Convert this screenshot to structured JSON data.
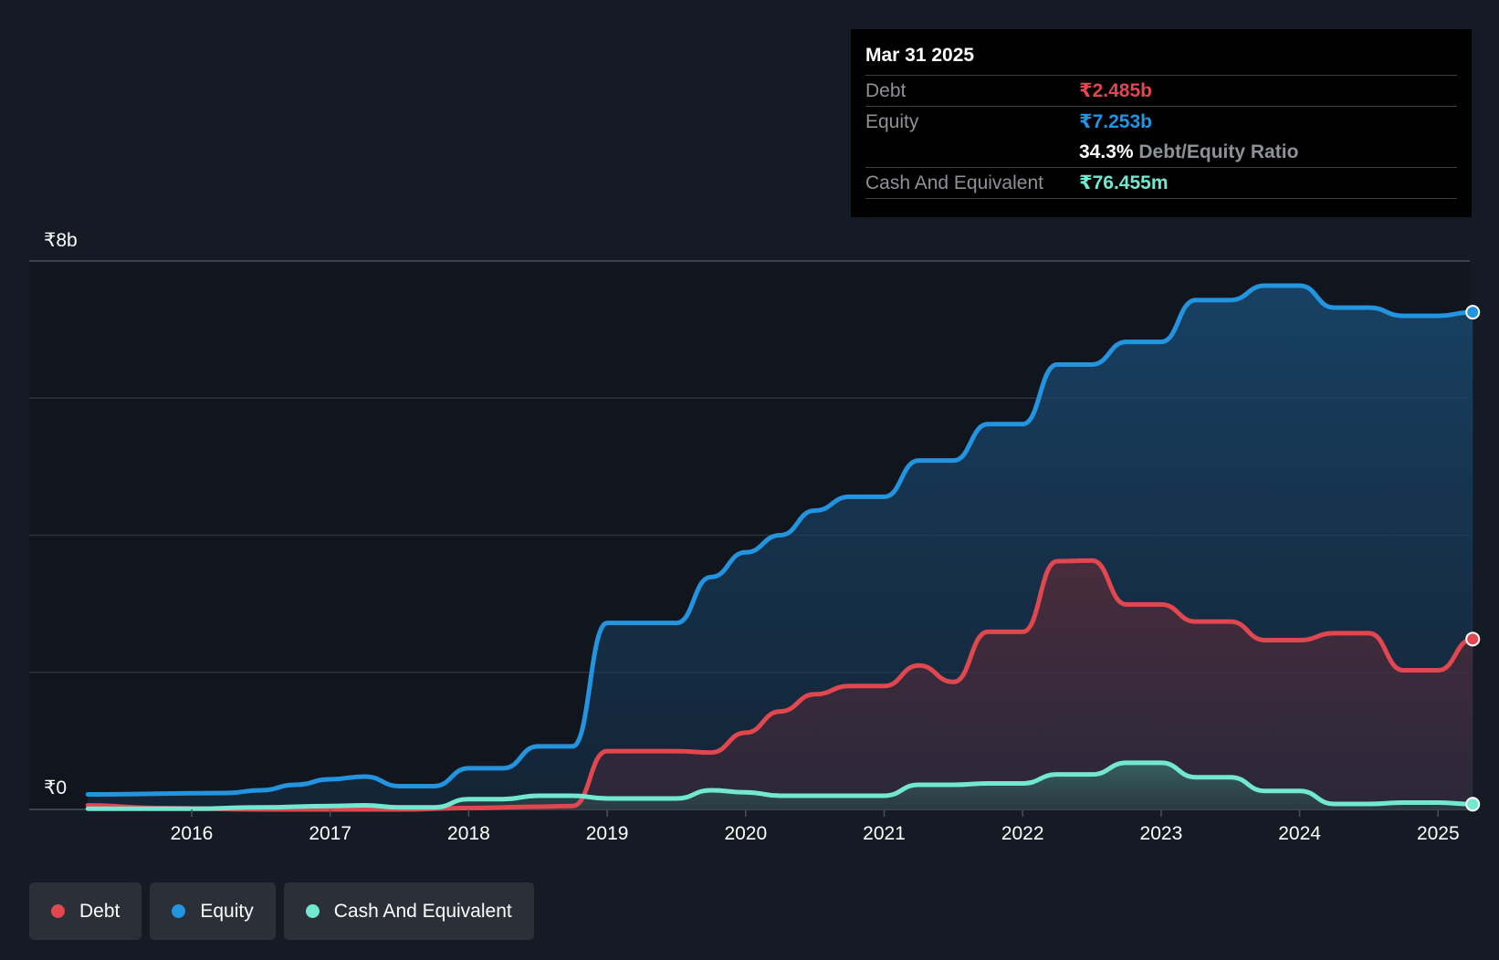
{
  "chart_data": {
    "type": "area",
    "title": "",
    "y_axis": {
      "top_label": "₹8b",
      "bottom_label": "₹0",
      "ylim": [
        0,
        8
      ],
      "unit": "₹b"
    },
    "x_axis": {
      "ticks": [
        "2016",
        "2017",
        "2018",
        "2019",
        "2020",
        "2021",
        "2022",
        "2023",
        "2024",
        "2025"
      ],
      "xlim": [
        2015.25,
        2025.25
      ]
    },
    "series": [
      {
        "name": "Equity",
        "color": "#2394df",
        "points": [
          [
            2015.25,
            0.22
          ],
          [
            2016.25,
            0.24
          ],
          [
            2016.5,
            0.28
          ],
          [
            2016.75,
            0.36
          ],
          [
            2017.0,
            0.44
          ],
          [
            2017.25,
            0.48
          ],
          [
            2017.5,
            0.34
          ],
          [
            2017.75,
            0.34
          ],
          [
            2018.0,
            0.6
          ],
          [
            2018.25,
            0.6
          ],
          [
            2018.5,
            0.92
          ],
          [
            2018.75,
            0.92
          ],
          [
            2019.0,
            2.72
          ],
          [
            2019.5,
            2.72
          ],
          [
            2019.75,
            3.39
          ],
          [
            2020.0,
            3.75
          ],
          [
            2020.25,
            4.0
          ],
          [
            2020.5,
            4.36
          ],
          [
            2020.75,
            4.56
          ],
          [
            2021.0,
            4.56
          ],
          [
            2021.25,
            5.09
          ],
          [
            2021.5,
            5.09
          ],
          [
            2021.75,
            5.62
          ],
          [
            2022.0,
            5.62
          ],
          [
            2022.25,
            6.49
          ],
          [
            2022.5,
            6.49
          ],
          [
            2022.75,
            6.82
          ],
          [
            2023.0,
            6.82
          ],
          [
            2023.25,
            7.43
          ],
          [
            2023.5,
            7.43
          ],
          [
            2023.75,
            7.64
          ],
          [
            2024.0,
            7.64
          ],
          [
            2024.25,
            7.32
          ],
          [
            2024.5,
            7.32
          ],
          [
            2024.75,
            7.2
          ],
          [
            2025.0,
            7.2
          ],
          [
            2025.25,
            7.253
          ]
        ]
      },
      {
        "name": "Debt",
        "color": "#e0474e",
        "points": [
          [
            2015.25,
            0.06
          ],
          [
            2015.75,
            0.02
          ],
          [
            2016.5,
            0.0
          ],
          [
            2017.5,
            0.0
          ],
          [
            2018.0,
            0.02
          ],
          [
            2018.5,
            0.04
          ],
          [
            2018.75,
            0.05
          ],
          [
            2019.0,
            0.85
          ],
          [
            2019.5,
            0.85
          ],
          [
            2019.75,
            0.83
          ],
          [
            2020.0,
            1.12
          ],
          [
            2020.25,
            1.43
          ],
          [
            2020.5,
            1.68
          ],
          [
            2020.75,
            1.8
          ],
          [
            2021.0,
            1.8
          ],
          [
            2021.25,
            2.1
          ],
          [
            2021.5,
            1.86
          ],
          [
            2021.75,
            2.59
          ],
          [
            2022.0,
            2.59
          ],
          [
            2022.25,
            3.62
          ],
          [
            2022.5,
            3.63
          ],
          [
            2022.75,
            2.99
          ],
          [
            2023.0,
            2.99
          ],
          [
            2023.25,
            2.74
          ],
          [
            2023.5,
            2.74
          ],
          [
            2023.75,
            2.47
          ],
          [
            2024.0,
            2.47
          ],
          [
            2024.25,
            2.57
          ],
          [
            2024.5,
            2.57
          ],
          [
            2024.75,
            2.03
          ],
          [
            2025.0,
            2.03
          ],
          [
            2025.25,
            2.485
          ]
        ]
      },
      {
        "name": "Cash And Equivalent",
        "color": "#73e8d1",
        "points": [
          [
            2015.25,
            0.01
          ],
          [
            2016.0,
            0.01
          ],
          [
            2016.5,
            0.03
          ],
          [
            2017.0,
            0.05
          ],
          [
            2017.25,
            0.06
          ],
          [
            2017.5,
            0.03
          ],
          [
            2017.75,
            0.03
          ],
          [
            2018.0,
            0.15
          ],
          [
            2018.25,
            0.15
          ],
          [
            2018.5,
            0.2
          ],
          [
            2018.75,
            0.2
          ],
          [
            2019.0,
            0.16
          ],
          [
            2019.5,
            0.16
          ],
          [
            2019.75,
            0.28
          ],
          [
            2020.0,
            0.25
          ],
          [
            2020.25,
            0.2
          ],
          [
            2020.5,
            0.2
          ],
          [
            2020.75,
            0.2
          ],
          [
            2021.0,
            0.2
          ],
          [
            2021.25,
            0.36
          ],
          [
            2021.5,
            0.36
          ],
          [
            2021.75,
            0.38
          ],
          [
            2022.0,
            0.38
          ],
          [
            2022.25,
            0.51
          ],
          [
            2022.5,
            0.51
          ],
          [
            2022.75,
            0.68
          ],
          [
            2023.0,
            0.68
          ],
          [
            2023.25,
            0.47
          ],
          [
            2023.5,
            0.47
          ],
          [
            2023.75,
            0.27
          ],
          [
            2024.0,
            0.27
          ],
          [
            2024.25,
            0.08
          ],
          [
            2024.5,
            0.08
          ],
          [
            2024.75,
            0.1
          ],
          [
            2025.0,
            0.1
          ],
          [
            2025.25,
            0.076
          ]
        ]
      }
    ]
  },
  "tooltip": {
    "date": "Mar 31 2025",
    "debt_label": "Debt",
    "debt_value": "₹2.485b",
    "equity_label": "Equity",
    "equity_value": "₹7.253b",
    "ratio_value": "34.3%",
    "ratio_label": "Debt/Equity Ratio",
    "cash_label": "Cash And Equivalent",
    "cash_value": "₹76.455m"
  },
  "legend": [
    {
      "label": "Debt",
      "color": "#e0474e"
    },
    {
      "label": "Equity",
      "color": "#2394df"
    },
    {
      "label": "Cash And Equivalent",
      "color": "#73e8d1"
    }
  ],
  "colors": {
    "background": "#151b24",
    "plot_background": "#11161e",
    "debt": "#e0474e",
    "equity": "#2394df",
    "cash": "#73e8d1"
  }
}
